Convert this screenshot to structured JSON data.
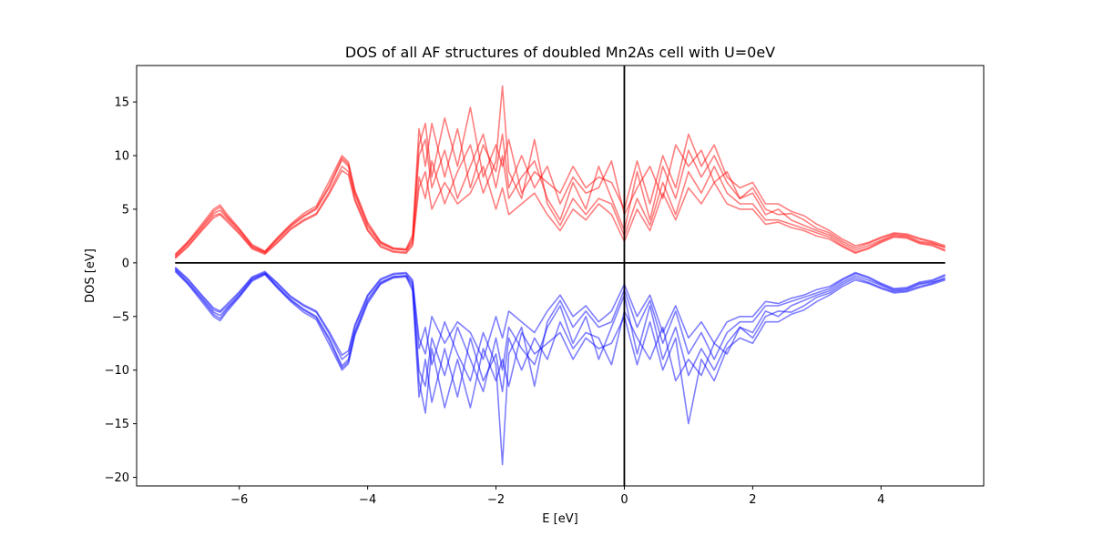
{
  "chart_data": {
    "type": "line",
    "title": "DOS of all AF structures of doubled Mn2As cell with U=0eV",
    "xlabel": "E [eV]",
    "ylabel": "DOS [eV]",
    "xlim": [
      -7.6,
      5.6
    ],
    "ylim": [
      -20.8,
      18.4
    ],
    "grid": false,
    "xticks": [
      -6,
      -4,
      -2,
      0,
      2,
      4
    ],
    "yticks": [
      -20,
      -15,
      -10,
      -5,
      0,
      5,
      10,
      15
    ],
    "x": [
      -7.0,
      -6.8,
      -6.6,
      -6.4,
      -6.3,
      -6.2,
      -6.0,
      -5.8,
      -5.6,
      -5.4,
      -5.2,
      -5.0,
      -4.8,
      -4.6,
      -4.4,
      -4.3,
      -4.2,
      -4.0,
      -3.8,
      -3.6,
      -3.4,
      -3.3,
      -3.2,
      -3.1,
      -3.0,
      -2.8,
      -2.6,
      -2.4,
      -2.2,
      -2.0,
      -1.9,
      -1.8,
      -1.6,
      -1.4,
      -1.2,
      -1.0,
      -0.8,
      -0.6,
      -0.4,
      -0.2,
      0.0,
      0.2,
      0.4,
      0.6,
      0.8,
      1.0,
      1.2,
      1.4,
      1.6,
      1.8,
      2.0,
      2.2,
      2.4,
      2.6,
      2.8,
      3.0,
      3.2,
      3.4,
      3.6,
      3.8,
      4.0,
      4.2,
      4.4,
      4.6,
      4.8,
      5.0
    ],
    "series": [
      {
        "color": "#ff0000",
        "values": [
          0.6,
          1.8,
          3.2,
          4.6,
          4.9,
          4.3,
          3.0,
          1.5,
          1.0,
          2.2,
          3.4,
          4.3,
          5.0,
          7.0,
          9.6,
          9.0,
          6.4,
          3.4,
          1.8,
          1.3,
          1.2,
          2.0,
          10.0,
          11.5,
          7.0,
          10.5,
          6.0,
          9.0,
          12.0,
          7.0,
          10.0,
          6.0,
          8.0,
          9.5,
          6.0,
          4.0,
          7.5,
          5.0,
          9.0,
          6.0,
          3.0,
          8.5,
          4.0,
          9.0,
          6.0,
          10.5,
          8.0,
          10.0,
          7.5,
          6.0,
          6.5,
          4.5,
          5.0,
          4.0,
          3.5,
          3.0,
          2.6,
          1.8,
          1.2,
          1.6,
          2.1,
          2.6,
          2.5,
          2.0,
          1.8,
          1.5
        ]
      },
      {
        "color": "#ff0000",
        "values": [
          0.8,
          2.0,
          3.5,
          5.0,
          5.4,
          4.6,
          3.2,
          1.7,
          1.1,
          2.4,
          3.6,
          4.6,
          5.3,
          7.6,
          10.0,
          9.4,
          6.8,
          3.8,
          2.0,
          1.4,
          1.3,
          2.6,
          12.5,
          9.0,
          13.0,
          8.0,
          12.5,
          7.0,
          11.0,
          8.5,
          12.0,
          7.0,
          10.0,
          7.0,
          9.0,
          5.5,
          8.0,
          6.5,
          7.0,
          9.5,
          4.5,
          7.0,
          9.0,
          6.0,
          11.0,
          9.0,
          10.5,
          7.5,
          8.5,
          6.0,
          7.0,
          5.0,
          4.5,
          4.6,
          4.0,
          3.2,
          2.8,
          2.0,
          1.4,
          1.8,
          2.3,
          2.7,
          2.6,
          2.2,
          1.9,
          1.4
        ]
      },
      {
        "color": "#ff0000",
        "values": [
          0.5,
          1.6,
          3.0,
          4.4,
          4.6,
          4.1,
          2.8,
          1.4,
          0.9,
          2.0,
          3.2,
          4.0,
          4.6,
          6.6,
          9.0,
          8.5,
          6.0,
          3.1,
          1.6,
          1.1,
          1.0,
          1.8,
          8.0,
          6.0,
          9.5,
          5.5,
          8.5,
          11.0,
          6.5,
          9.5,
          16.5,
          8.5,
          6.0,
          11.5,
          5.5,
          3.5,
          6.0,
          4.5,
          6.0,
          5.5,
          2.5,
          6.0,
          3.5,
          7.5,
          4.5,
          8.5,
          6.5,
          9.0,
          6.5,
          5.5,
          5.5,
          4.0,
          4.0,
          3.6,
          3.2,
          2.8,
          2.4,
          1.6,
          1.0,
          1.4,
          2.0,
          2.5,
          2.4,
          1.9,
          1.7,
          1.2
        ]
      },
      {
        "color": "#ff0000",
        "values": [
          0.7,
          1.9,
          3.3,
          4.8,
          5.2,
          4.4,
          3.1,
          1.6,
          1.0,
          2.3,
          3.5,
          4.4,
          5.1,
          7.2,
          9.8,
          9.2,
          6.6,
          3.6,
          1.9,
          1.3,
          1.2,
          2.3,
          11.0,
          13.0,
          8.0,
          13.5,
          9.0,
          14.5,
          8.0,
          11.0,
          9.0,
          11.5,
          6.5,
          8.5,
          7.5,
          6.5,
          9.0,
          7.0,
          8.0,
          7.5,
          5.0,
          9.5,
          5.5,
          10.0,
          7.0,
          12.0,
          9.0,
          11.0,
          8.0,
          7.0,
          7.5,
          5.5,
          5.5,
          4.8,
          4.4,
          3.6,
          3.0,
          2.2,
          1.6,
          1.9,
          2.4,
          2.8,
          2.7,
          2.3,
          2.0,
          1.6
        ]
      },
      {
        "color": "#ff0000",
        "values": [
          0.4,
          1.5,
          2.9,
          4.2,
          4.5,
          3.9,
          2.7,
          1.3,
          0.8,
          1.9,
          3.1,
          3.9,
          4.5,
          6.4,
          8.6,
          8.2,
          5.8,
          3.0,
          1.5,
          1.0,
          0.9,
          1.6,
          7.0,
          8.5,
          5.0,
          7.5,
          5.5,
          6.5,
          9.0,
          5.0,
          7.0,
          4.5,
          5.5,
          6.5,
          4.5,
          3.0,
          5.0,
          4.0,
          5.5,
          4.5,
          2.0,
          5.0,
          3.0,
          6.5,
          4.0,
          7.0,
          5.5,
          7.5,
          5.5,
          5.0,
          5.0,
          3.6,
          3.8,
          3.3,
          3.0,
          2.5,
          2.2,
          1.5,
          0.9,
          1.3,
          1.9,
          2.4,
          2.3,
          1.8,
          1.6,
          1.1
        ]
      }
    ],
    "series_negative": [
      {
        "color": "#0000ff",
        "values": [
          -0.6,
          -1.8,
          -3.2,
          -4.6,
          -4.9,
          -4.3,
          -3.0,
          -1.5,
          -1.0,
          -2.2,
          -3.4,
          -4.3,
          -5.0,
          -7.0,
          -9.6,
          -9.0,
          -6.4,
          -3.4,
          -1.8,
          -1.3,
          -1.2,
          -2.0,
          -10.0,
          -11.5,
          -7.0,
          -10.5,
          -6.0,
          -9.0,
          -12.0,
          -7.0,
          -10.0,
          -6.0,
          -8.0,
          -9.5,
          -6.0,
          -4.0,
          -7.5,
          -5.0,
          -9.0,
          -6.0,
          -3.0,
          -8.5,
          -4.0,
          -9.0,
          -6.0,
          -10.5,
          -8.0,
          -10.0,
          -7.5,
          -6.0,
          -6.5,
          -4.5,
          -5.0,
          -4.0,
          -3.5,
          -3.0,
          -2.6,
          -1.8,
          -1.2,
          -1.6,
          -2.1,
          -2.6,
          -2.5,
          -2.0,
          -1.8,
          -1.5
        ]
      },
      {
        "color": "#0000ff",
        "values": [
          -0.8,
          -2.0,
          -3.5,
          -5.0,
          -5.4,
          -4.6,
          -3.2,
          -1.7,
          -1.1,
          -2.4,
          -3.6,
          -4.6,
          -5.3,
          -7.6,
          -10.0,
          -9.4,
          -6.8,
          -3.8,
          -2.0,
          -1.4,
          -1.3,
          -2.6,
          -12.5,
          -9.0,
          -13.0,
          -8.0,
          -12.5,
          -7.0,
          -11.0,
          -8.5,
          -12.0,
          -7.0,
          -10.0,
          -7.0,
          -9.0,
          -5.5,
          -8.0,
          -6.5,
          -7.0,
          -9.5,
          -4.5,
          -7.0,
          -9.0,
          -6.0,
          -11.0,
          -9.0,
          -10.5,
          -7.5,
          -8.5,
          -6.0,
          -7.0,
          -5.0,
          -4.5,
          -4.6,
          -4.0,
          -3.2,
          -2.8,
          -2.0,
          -1.4,
          -1.8,
          -2.3,
          -2.7,
          -2.6,
          -2.2,
          -1.9,
          -1.4
        ]
      },
      {
        "color": "#0000ff",
        "values": [
          -0.5,
          -1.6,
          -3.0,
          -4.4,
          -4.6,
          -4.1,
          -2.8,
          -1.4,
          -0.9,
          -2.0,
          -3.2,
          -4.0,
          -4.6,
          -6.6,
          -9.0,
          -8.5,
          -6.0,
          -3.1,
          -1.6,
          -1.1,
          -1.0,
          -1.8,
          -8.0,
          -6.0,
          -9.5,
          -5.5,
          -8.5,
          -11.0,
          -6.5,
          -9.5,
          -18.8,
          -8.5,
          -6.0,
          -11.5,
          -5.5,
          -3.5,
          -6.0,
          -4.5,
          -6.0,
          -5.5,
          -2.5,
          -6.0,
          -3.5,
          -7.5,
          -4.5,
          -8.5,
          -6.5,
          -9.0,
          -6.5,
          -5.5,
          -5.5,
          -4.0,
          -4.0,
          -3.6,
          -3.2,
          -2.8,
          -2.4,
          -1.6,
          -1.0,
          -1.4,
          -2.0,
          -2.5,
          -2.4,
          -1.9,
          -1.7,
          -1.2
        ]
      },
      {
        "color": "#0000ff",
        "values": [
          -0.7,
          -1.9,
          -3.3,
          -4.8,
          -5.2,
          -4.4,
          -3.1,
          -1.6,
          -1.0,
          -2.3,
          -3.5,
          -4.4,
          -5.1,
          -7.2,
          -9.8,
          -9.2,
          -6.6,
          -3.6,
          -1.9,
          -1.3,
          -1.2,
          -2.3,
          -11.0,
          -14.0,
          -8.0,
          -13.5,
          -9.0,
          -13.5,
          -8.0,
          -11.0,
          -9.0,
          -11.5,
          -6.5,
          -8.5,
          -7.5,
          -6.5,
          -9.0,
          -7.0,
          -8.0,
          -7.5,
          -5.0,
          -9.5,
          -5.5,
          -10.0,
          -7.0,
          -15.0,
          -9.0,
          -11.0,
          -8.0,
          -7.0,
          -7.5,
          -5.5,
          -5.5,
          -4.8,
          -4.4,
          -3.6,
          -3.0,
          -2.2,
          -1.6,
          -1.9,
          -2.4,
          -2.8,
          -2.7,
          -2.3,
          -2.0,
          -1.6
        ]
      },
      {
        "color": "#0000ff",
        "values": [
          -0.4,
          -1.5,
          -2.9,
          -4.2,
          -4.5,
          -3.9,
          -2.7,
          -1.3,
          -0.8,
          -1.9,
          -3.1,
          -3.9,
          -4.5,
          -6.4,
          -8.6,
          -8.2,
          -5.8,
          -3.0,
          -1.5,
          -1.0,
          -0.9,
          -1.6,
          -7.0,
          -8.5,
          -5.0,
          -7.5,
          -5.5,
          -6.5,
          -9.0,
          -5.0,
          -7.0,
          -4.5,
          -5.5,
          -6.5,
          -4.5,
          -3.0,
          -5.0,
          -4.0,
          -5.5,
          -4.5,
          -2.0,
          -5.0,
          -3.0,
          -6.5,
          -4.0,
          -7.0,
          -5.5,
          -7.5,
          -5.5,
          -5.0,
          -5.0,
          -3.6,
          -3.8,
          -3.3,
          -3.0,
          -2.5,
          -2.2,
          -1.5,
          -0.9,
          -1.3,
          -1.9,
          -2.4,
          -2.3,
          -1.8,
          -1.6,
          -1.1
        ]
      }
    ]
  }
}
